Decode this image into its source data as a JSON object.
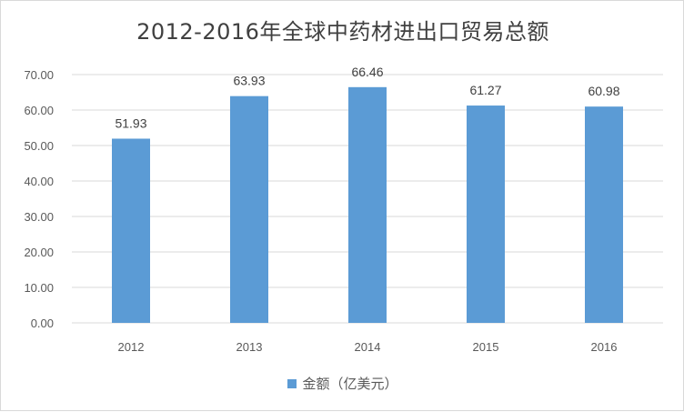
{
  "chart_data": {
    "type": "bar",
    "title": "2012-2016年全球中药材进出口贸易总额",
    "categories": [
      "2012",
      "2013",
      "2014",
      "2015",
      "2016"
    ],
    "series": [
      {
        "name": "金额（亿美元）",
        "values": [
          51.93,
          63.93,
          66.46,
          61.27,
          60.98
        ]
      }
    ],
    "data_labels": [
      "51.93",
      "63.93",
      "66.46",
      "61.27",
      "60.98"
    ],
    "y_ticks": [
      "0.00",
      "10.00",
      "20.00",
      "30.00",
      "40.00",
      "50.00",
      "60.00",
      "70.00"
    ],
    "ylim": [
      0,
      70
    ],
    "grid": true,
    "legend_position": "bottom",
    "colors": {
      "bar": "#5b9bd5",
      "grid": "#d9d9d9",
      "text": "#595959"
    }
  }
}
